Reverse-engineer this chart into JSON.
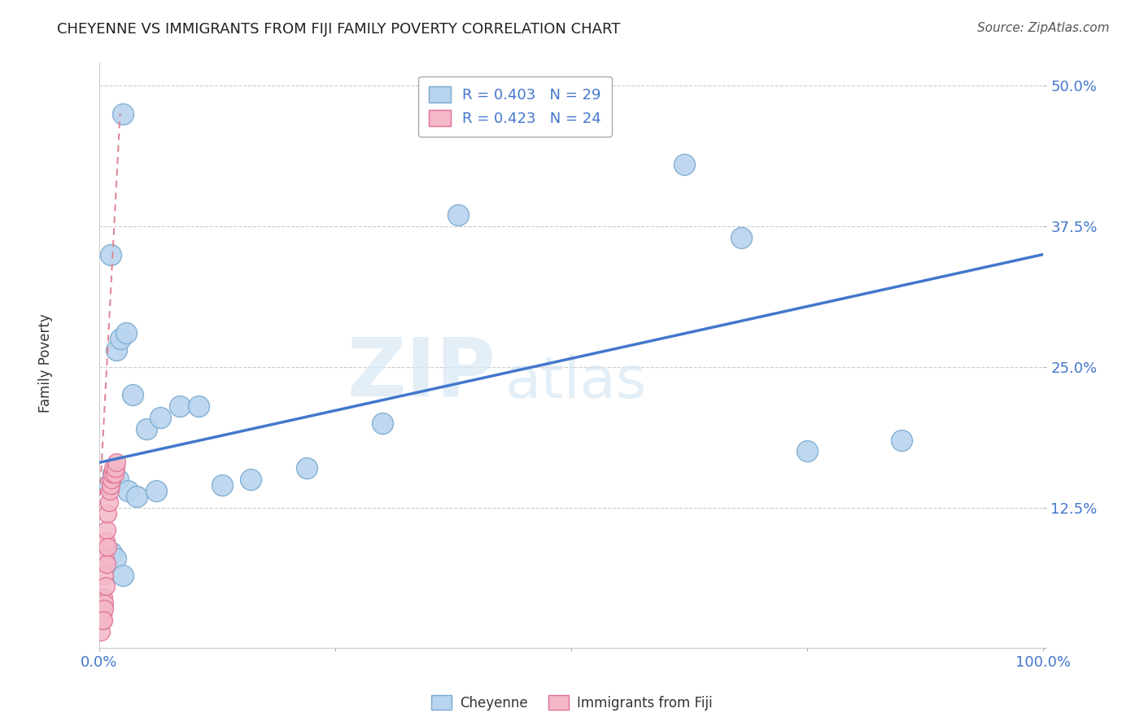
{
  "title": "CHEYENNE VS IMMIGRANTS FROM FIJI FAMILY POVERTY CORRELATION CHART",
  "source": "Source: ZipAtlas.com",
  "ylabel": "Family Poverty",
  "xlim": [
    0,
    100
  ],
  "ylim": [
    0,
    52
  ],
  "yticks": [
    0,
    12.5,
    25,
    37.5,
    50
  ],
  "ytick_labels": [
    "",
    "12.5%",
    "25.0%",
    "37.5%",
    "50.0%"
  ],
  "xticks": [
    0,
    25,
    50,
    75,
    100
  ],
  "xtick_labels": [
    "0.0%",
    "",
    "",
    "",
    "100.0%"
  ],
  "grid_color": "#cccccc",
  "background_color": "#ffffff",
  "cheyenne_color": "#b8d4ee",
  "fiji_color": "#f4b8c8",
  "cheyenne_edge": "#7aaad0",
  "fiji_edge": "#e07090",
  "cheyenne_R": 0.403,
  "cheyenne_N": 29,
  "fiji_R": 0.423,
  "fiji_N": 24,
  "cheyenne_line_color": "#4477cc",
  "fiji_line_color": "#e08898",
  "watermark_zip": "ZIP",
  "watermark_atlas": "atlas",
  "cheyenne_x": [
    2.5,
    1.2,
    1.8,
    2.2,
    2.8,
    3.5,
    5.0,
    6.5,
    8.5,
    10.5,
    13.0,
    16.0,
    22.0,
    30.0,
    38.0,
    52.0,
    62.0,
    68.0,
    75.0,
    85.0,
    1.0,
    1.5,
    2.0,
    3.0,
    4.0,
    6.0,
    1.3,
    1.7,
    2.5
  ],
  "cheyenne_y": [
    47.5,
    35.0,
    26.5,
    27.5,
    28.0,
    22.5,
    19.5,
    20.5,
    21.5,
    21.5,
    14.5,
    15.0,
    16.0,
    20.0,
    38.5,
    47.5,
    43.0,
    36.5,
    17.5,
    18.5,
    14.5,
    15.5,
    15.0,
    14.0,
    13.5,
    14.0,
    8.5,
    8.0,
    6.5
  ],
  "fiji_x": [
    0.2,
    0.3,
    0.4,
    0.5,
    0.6,
    0.7,
    0.8,
    0.9,
    1.0,
    1.1,
    1.2,
    1.3,
    1.4,
    1.5,
    1.6,
    1.7,
    1.8,
    0.35,
    0.55,
    0.65,
    0.75,
    0.85,
    0.5,
    0.4
  ],
  "fiji_y": [
    1.5,
    3.0,
    4.5,
    6.5,
    8.0,
    9.5,
    10.5,
    12.0,
    13.0,
    14.0,
    14.5,
    15.0,
    15.5,
    16.0,
    15.5,
    16.0,
    16.5,
    2.5,
    4.0,
    5.5,
    7.5,
    9.0,
    3.5,
    2.5
  ],
  "cheyenne_line_x0": 0,
  "cheyenne_line_y0": 16.5,
  "cheyenne_line_x1": 100,
  "cheyenne_line_y1": 35.0,
  "fiji_line_x0": 0.0,
  "fiji_line_y0": 12.5,
  "fiji_line_x1": 2.2,
  "fiji_line_y1": 47.5
}
